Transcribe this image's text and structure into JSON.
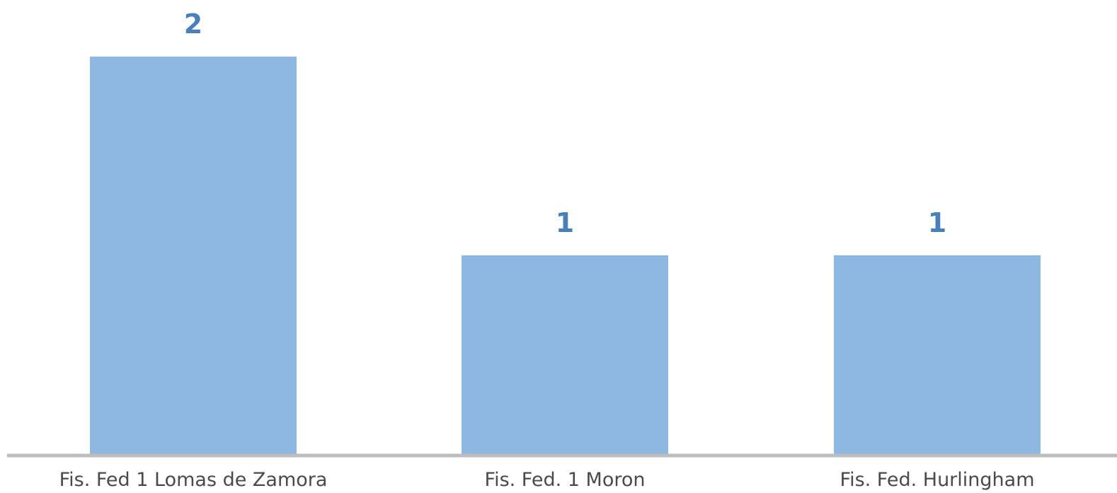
{
  "chart_data": {
    "type": "bar",
    "categories": [
      "Fis. Fed 1 Lomas de Zamora",
      "Fis. Fed. 1 Moron",
      "Fis. Fed. Hurlingham"
    ],
    "values": [
      2,
      1,
      1
    ],
    "data_labels": [
      "2",
      "1",
      "1"
    ],
    "ylim": [
      0,
      2
    ],
    "grid": false,
    "legend": "none",
    "colors": {
      "bar": "#8cb8e1",
      "value_label": "#4a7fba",
      "axis": "#bdbdbd",
      "category_label": "#4a4a4a"
    }
  }
}
